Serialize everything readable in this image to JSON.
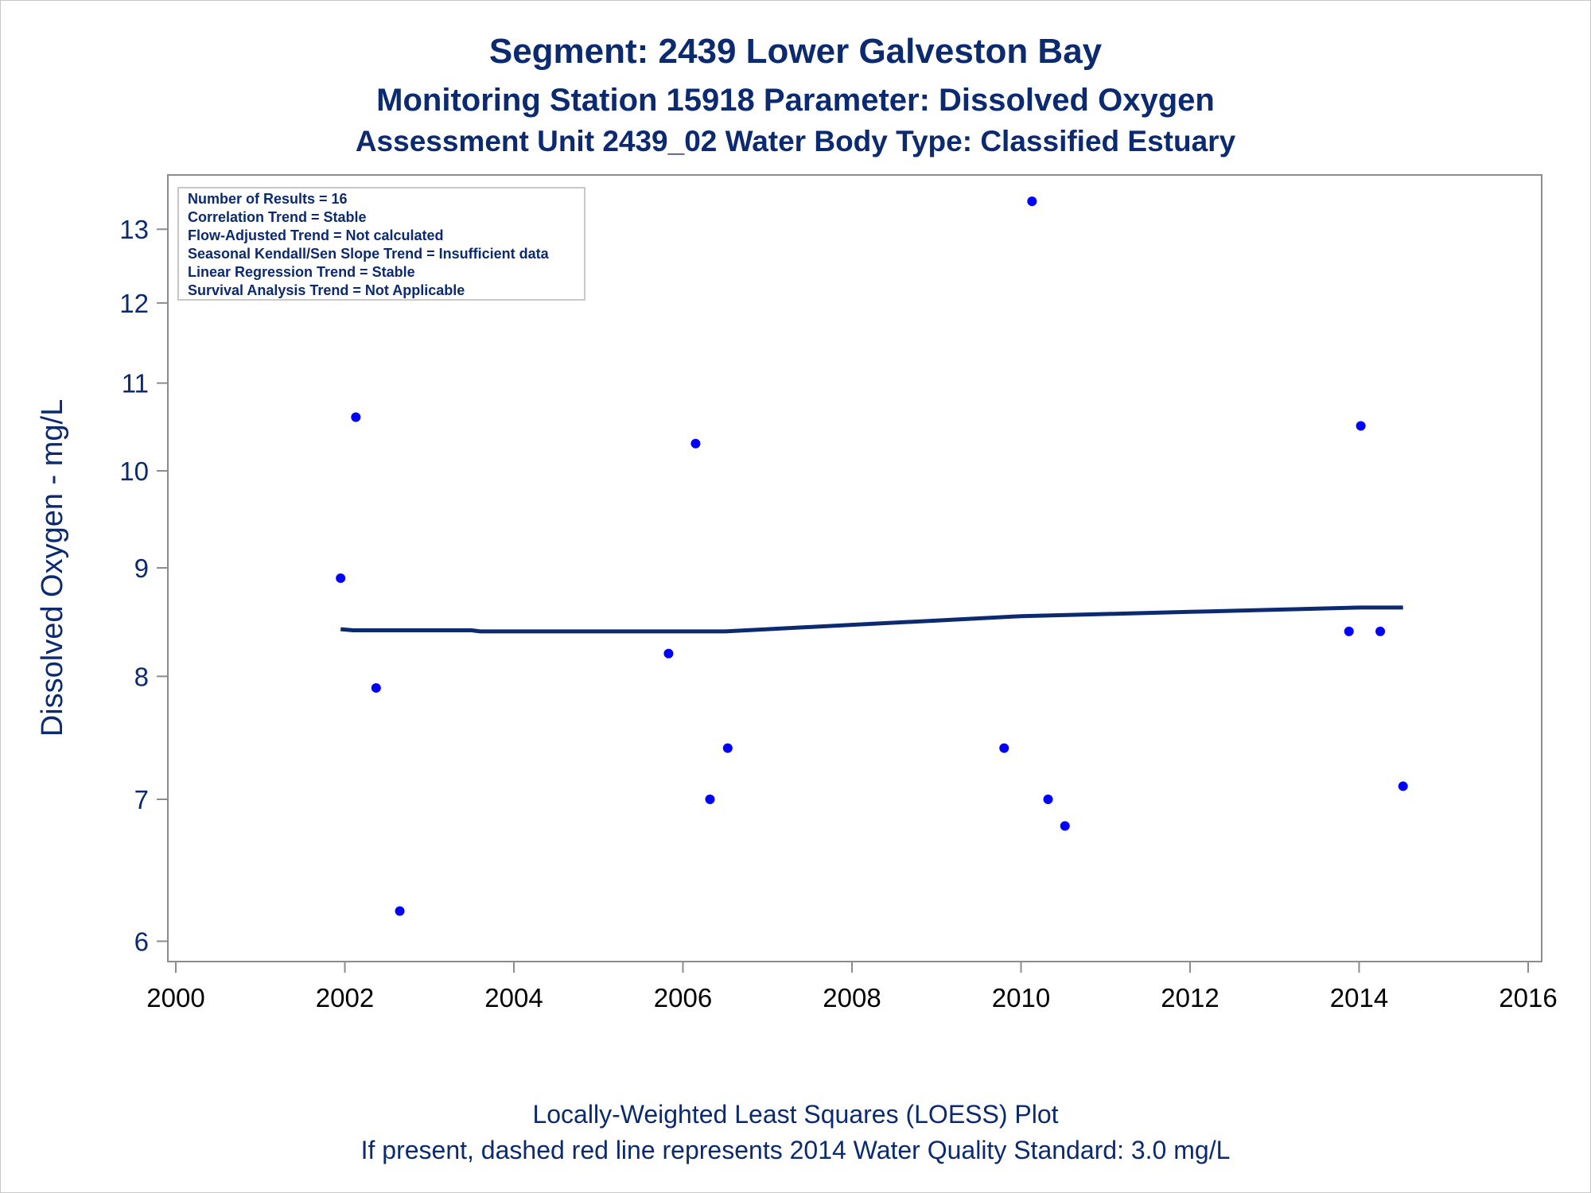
{
  "chart_data": {
    "type": "scatter",
    "title": "Segment: 2439  Lower Galveston Bay",
    "subtitle": "Monitoring Station 15918 Parameter: Dissolved Oxygen",
    "subtitle2": "Assessment Unit 2439_02   Water Body Type: Classified Estuary",
    "xlabel": "",
    "ylabel": "Dissolved Oxygen - mg/L",
    "y_scale": "log",
    "xlim": [
      2000,
      2016
    ],
    "ylim": [
      5.92,
      13.6
    ],
    "x_ticks": [
      "2000",
      "2002",
      "2004",
      "2006",
      "2008",
      "2010",
      "2012",
      "2014",
      "2016"
    ],
    "y_ticks": [
      "6",
      "7",
      "8",
      "9",
      "10",
      "11",
      "12",
      "13"
    ],
    "stats": [
      "Number of Results = 16",
      "Correlation Trend = Stable",
      "Flow-Adjusted Trend = Not calculated",
      "Seasonal Kendall/Sen Slope Trend = Insufficient data",
      "Linear Regression Trend = Stable",
      "Survival Analysis Trend = Not Applicable"
    ],
    "points": [
      {
        "x": 2001.95,
        "y": 8.9
      },
      {
        "x": 2002.13,
        "y": 10.6
      },
      {
        "x": 2002.37,
        "y": 7.9
      },
      {
        "x": 2002.65,
        "y": 6.2
      },
      {
        "x": 2005.83,
        "y": 8.2
      },
      {
        "x": 2006.15,
        "y": 10.3
      },
      {
        "x": 2006.32,
        "y": 7.0
      },
      {
        "x": 2006.53,
        "y": 7.4
      },
      {
        "x": 2009.8,
        "y": 7.4
      },
      {
        "x": 2010.13,
        "y": 13.4
      },
      {
        "x": 2010.32,
        "y": 7.0
      },
      {
        "x": 2010.52,
        "y": 6.8
      },
      {
        "x": 2013.88,
        "y": 8.4
      },
      {
        "x": 2014.02,
        "y": 10.5
      },
      {
        "x": 2014.25,
        "y": 8.4
      },
      {
        "x": 2014.52,
        "y": 7.1
      }
    ],
    "loess": [
      {
        "x": 2001.95,
        "y": 8.42
      },
      {
        "x": 2002.1,
        "y": 8.41
      },
      {
        "x": 2003.5,
        "y": 8.41
      },
      {
        "x": 2003.6,
        "y": 8.4
      },
      {
        "x": 2006.5,
        "y": 8.4
      },
      {
        "x": 2007.0,
        "y": 8.42
      },
      {
        "x": 2008.0,
        "y": 8.46
      },
      {
        "x": 2009.0,
        "y": 8.5
      },
      {
        "x": 2010.0,
        "y": 8.54
      },
      {
        "x": 2011.0,
        "y": 8.56
      },
      {
        "x": 2012.0,
        "y": 8.58
      },
      {
        "x": 2013.0,
        "y": 8.6
      },
      {
        "x": 2014.0,
        "y": 8.62
      },
      {
        "x": 2014.52,
        "y": 8.62
      }
    ],
    "colors": {
      "points": "#0000ff",
      "loess": "#0b2a6f",
      "text": "#0b2a6f",
      "axis": "#8c8c8c"
    },
    "legend": "top-left"
  },
  "footer": {
    "line1": "Locally-Weighted Least Squares (LOESS) Plot",
    "line2": "If present, dashed red line represents 2014 Water Quality Standard: 3.0 mg/L"
  }
}
